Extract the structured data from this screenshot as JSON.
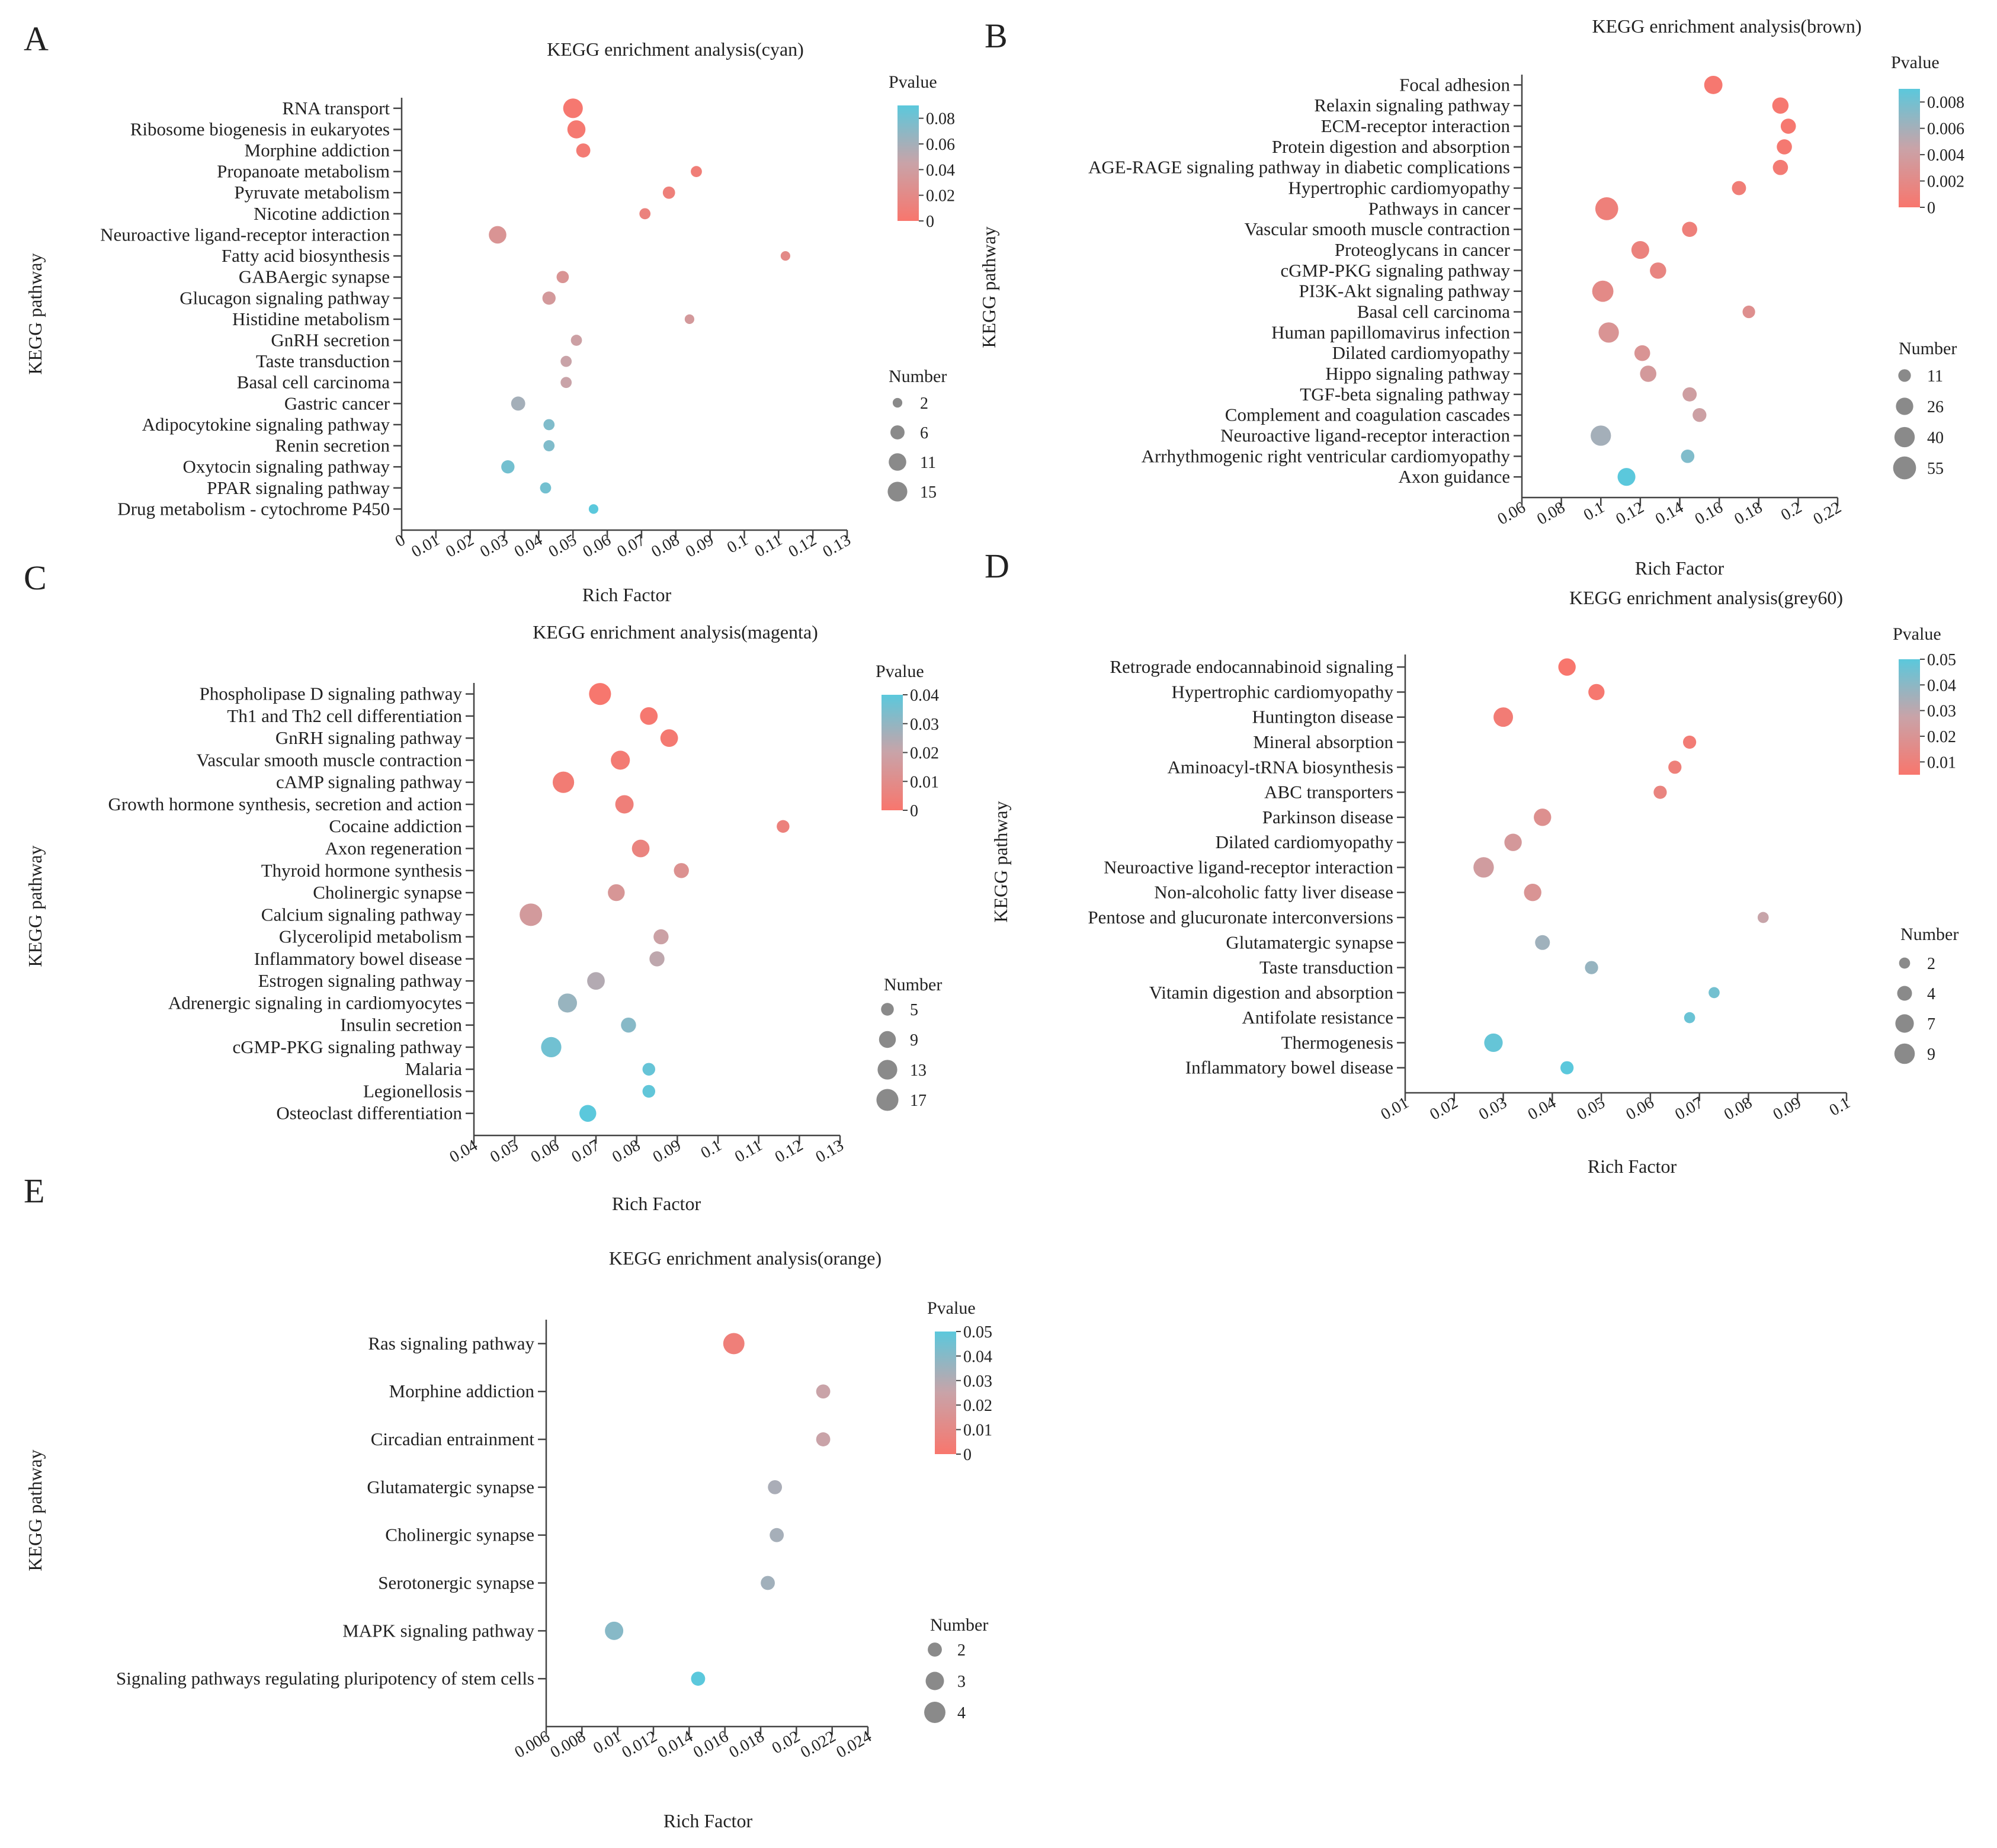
{
  "colors": {
    "low_p": "#F8766D",
    "mid_p": "#C9A3A8",
    "high_p": "#5BC8DC"
  },
  "chart_data": [
    {
      "panel": "A",
      "type": "scatter",
      "title": "KEGG enrichment analysis(cyan)",
      "xlabel": "Rich Factor",
      "ylabel": "KEGG pathway",
      "xlim": [
        0,
        0.13
      ],
      "xticks": [
        0,
        0.01,
        0.02,
        0.03,
        0.04,
        0.05,
        0.06,
        0.07,
        0.08,
        0.09,
        0.1,
        0.11,
        0.12,
        0.13
      ],
      "xtick_labels": [
        "0",
        "0.01",
        "0.02",
        "0.03",
        "0.04",
        "0.05",
        "0.06",
        "0.07",
        "0.08",
        "0.09",
        "0.1",
        "0.11",
        "0.12",
        "0.13"
      ],
      "pvalue_legend": {
        "title": "Pvalue",
        "range": [
          0,
          0.09
        ],
        "ticks": [
          0,
          0.02,
          0.04,
          0.06,
          0.08
        ],
        "tick_labels": [
          "0",
          "0.02",
          "0.04",
          "0.06",
          "0.08"
        ]
      },
      "number_legend": {
        "title": "Number",
        "values": [
          2,
          6,
          11,
          15
        ],
        "labels": [
          "2",
          "6",
          "11",
          "15"
        ],
        "range": [
          1,
          16
        ]
      },
      "points": [
        {
          "pathway": "RNA transport",
          "x": 0.05,
          "number": 15,
          "p": 0.002
        },
        {
          "pathway": "Ribosome biogenesis in eukaryotes",
          "x": 0.051,
          "number": 12,
          "p": 0.003
        },
        {
          "pathway": "Morphine addiction",
          "x": 0.053,
          "number": 6,
          "p": 0.005
        },
        {
          "pathway": "Propanoate metabolism",
          "x": 0.086,
          "number": 3,
          "p": 0.008
        },
        {
          "pathway": "Pyruvate metabolism",
          "x": 0.078,
          "number": 4,
          "p": 0.01
        },
        {
          "pathway": "Nicotine addiction",
          "x": 0.071,
          "number": 3,
          "p": 0.012
        },
        {
          "pathway": "Neuroactive ligand-receptor interaction",
          "x": 0.028,
          "number": 11,
          "p": 0.03
        },
        {
          "pathway": "Fatty acid biosynthesis",
          "x": 0.112,
          "number": 2,
          "p": 0.02
        },
        {
          "pathway": "GABAergic synapse",
          "x": 0.047,
          "number": 4,
          "p": 0.03
        },
        {
          "pathway": "Glucagon signaling pathway",
          "x": 0.043,
          "number": 5,
          "p": 0.035
        },
        {
          "pathway": "Histidine metabolism",
          "x": 0.084,
          "number": 2,
          "p": 0.035
        },
        {
          "pathway": "GnRH secretion",
          "x": 0.051,
          "number": 3,
          "p": 0.042
        },
        {
          "pathway": "Taste transduction",
          "x": 0.048,
          "number": 3,
          "p": 0.045
        },
        {
          "pathway": "Basal cell carcinoma",
          "x": 0.048,
          "number": 3,
          "p": 0.045
        },
        {
          "pathway": "Gastric cancer",
          "x": 0.034,
          "number": 6,
          "p": 0.06
        },
        {
          "pathway": "Adipocytokine signaling pathway",
          "x": 0.043,
          "number": 3,
          "p": 0.075
        },
        {
          "pathway": "Renin secretion",
          "x": 0.043,
          "number": 3,
          "p": 0.075
        },
        {
          "pathway": "Oxytocin signaling pathway",
          "x": 0.031,
          "number": 5,
          "p": 0.08
        },
        {
          "pathway": "PPAR signaling pathway",
          "x": 0.042,
          "number": 3,
          "p": 0.08
        },
        {
          "pathway": "Drug metabolism - cytochrome P450",
          "x": 0.056,
          "number": 2,
          "p": 0.09
        }
      ]
    },
    {
      "panel": "B",
      "type": "scatter",
      "title": "KEGG enrichment analysis(brown)",
      "xlabel": "Rich Factor",
      "ylabel": "KEGG pathway",
      "xlim": [
        0.06,
        0.22
      ],
      "xticks": [
        0.06,
        0.08,
        0.1,
        0.12,
        0.14,
        0.16,
        0.18,
        0.2,
        0.22
      ],
      "xtick_labels": [
        "0.06",
        "0.08",
        "0.1",
        "0.12",
        "0.14",
        "0.16",
        "0.18",
        "0.2",
        "0.22"
      ],
      "pvalue_legend": {
        "title": "Pvalue",
        "range": [
          0,
          0.009
        ],
        "ticks": [
          0,
          0.002,
          0.004,
          0.006,
          0.008
        ],
        "tick_labels": [
          "0",
          "0.002",
          "0.004",
          "0.006",
          "0.008"
        ]
      },
      "number_legend": {
        "title": "Number",
        "values": [
          11,
          26,
          40,
          55
        ],
        "labels": [
          "11",
          "26",
          "40",
          "55"
        ],
        "range": [
          5,
          60
        ]
      },
      "points": [
        {
          "pathway": "Focal adhesion",
          "x": 0.157,
          "number": 30,
          "p": 0.0002
        },
        {
          "pathway": "Relaxin signaling pathway",
          "x": 0.191,
          "number": 22,
          "p": 0.0002
        },
        {
          "pathway": "ECM-receptor interaction",
          "x": 0.195,
          "number": 18,
          "p": 0.0002
        },
        {
          "pathway": "Protein digestion and absorption",
          "x": 0.193,
          "number": 18,
          "p": 0.0003
        },
        {
          "pathway": "AGE-RAGE signaling pathway in diabetic complications",
          "x": 0.191,
          "number": 18,
          "p": 0.0005
        },
        {
          "pathway": "Hypertrophic cardiomyopathy",
          "x": 0.17,
          "number": 15,
          "p": 0.0008
        },
        {
          "pathway": "Pathways in cancer",
          "x": 0.103,
          "number": 55,
          "p": 0.001
        },
        {
          "pathway": "Vascular smooth muscle contraction",
          "x": 0.145,
          "number": 18,
          "p": 0.001
        },
        {
          "pathway": "Proteoglycans in cancer",
          "x": 0.12,
          "number": 28,
          "p": 0.0012
        },
        {
          "pathway": "cGMP-PKG signaling pathway",
          "x": 0.129,
          "number": 22,
          "p": 0.0015
        },
        {
          "pathway": "PI3K-Akt signaling pathway",
          "x": 0.101,
          "number": 45,
          "p": 0.002
        },
        {
          "pathway": "Basal cell carcinoma",
          "x": 0.175,
          "number": 11,
          "p": 0.0025
        },
        {
          "pathway": "Human papillomavirus infection",
          "x": 0.104,
          "number": 40,
          "p": 0.003
        },
        {
          "pathway": "Dilated cardiomyopathy",
          "x": 0.121,
          "number": 20,
          "p": 0.003
        },
        {
          "pathway": "Hippo signaling pathway",
          "x": 0.124,
          "number": 22,
          "p": 0.0035
        },
        {
          "pathway": "TGF-beta signaling pathway",
          "x": 0.145,
          "number": 15,
          "p": 0.004
        },
        {
          "pathway": "Complement and coagulation cascades",
          "x": 0.15,
          "number": 14,
          "p": 0.0042
        },
        {
          "pathway": "Neuroactive ligand-receptor interaction",
          "x": 0.1,
          "number": 40,
          "p": 0.006
        },
        {
          "pathway": "Arrhythmogenic right ventricular cardiomyopathy",
          "x": 0.144,
          "number": 13,
          "p": 0.0075
        },
        {
          "pathway": "Axon guidance",
          "x": 0.113,
          "number": 28,
          "p": 0.009
        }
      ]
    },
    {
      "panel": "C",
      "type": "scatter",
      "title": "KEGG enrichment analysis(magenta)",
      "xlabel": "Rich Factor",
      "ylabel": "KEGG pathway",
      "xlim": [
        0.04,
        0.13
      ],
      "xticks": [
        0.04,
        0.05,
        0.06,
        0.07,
        0.08,
        0.09,
        0.1,
        0.11,
        0.12,
        0.13
      ],
      "xtick_labels": [
        "0.04",
        "0.05",
        "0.06",
        "0.07",
        "0.08",
        "0.09",
        "0.1",
        "0.11",
        "0.12",
        "0.13"
      ],
      "pvalue_legend": {
        "title": "Pvalue",
        "range": [
          0,
          0.04
        ],
        "ticks": [
          0,
          0.01,
          0.02,
          0.03,
          0.04
        ],
        "tick_labels": [
          "0",
          "0.01",
          "0.02",
          "0.03",
          "0.04"
        ]
      },
      "number_legend": {
        "title": "Number",
        "values": [
          5,
          9,
          13,
          17
        ],
        "labels": [
          "5",
          "9",
          "13",
          "17"
        ],
        "range": [
          3,
          18
        ]
      },
      "points": [
        {
          "pathway": "Phospholipase D signaling pathway",
          "x": 0.071,
          "number": 17,
          "p": 0.0005
        },
        {
          "pathway": "Th1 and Th2 cell differentiation",
          "x": 0.083,
          "number": 10,
          "p": 0.001
        },
        {
          "pathway": "GnRH signaling pathway",
          "x": 0.088,
          "number": 10,
          "p": 0.0015
        },
        {
          "pathway": "Vascular smooth muscle contraction",
          "x": 0.076,
          "number": 12,
          "p": 0.002
        },
        {
          "pathway": "cAMP signaling pathway",
          "x": 0.062,
          "number": 16,
          "p": 0.0025
        },
        {
          "pathway": "Growth hormone synthesis, secretion and action",
          "x": 0.077,
          "number": 11,
          "p": 0.004
        },
        {
          "pathway": "Cocaine addiction",
          "x": 0.116,
          "number": 5,
          "p": 0.005
        },
        {
          "pathway": "Axon regeneration",
          "x": 0.081,
          "number": 10,
          "p": 0.006
        },
        {
          "pathway": "Thyroid hormone synthesis",
          "x": 0.091,
          "number": 7,
          "p": 0.012
        },
        {
          "pathway": "Cholinergic synapse",
          "x": 0.075,
          "number": 9,
          "p": 0.014
        },
        {
          "pathway": "Calcium signaling pathway",
          "x": 0.054,
          "number": 18,
          "p": 0.016
        },
        {
          "pathway": "Glycerolipid metabolism",
          "x": 0.086,
          "number": 7,
          "p": 0.019
        },
        {
          "pathway": "Inflammatory bowel disease",
          "x": 0.085,
          "number": 7,
          "p": 0.022
        },
        {
          "pathway": "Estrogen signaling pathway",
          "x": 0.07,
          "number": 10,
          "p": 0.024
        },
        {
          "pathway": "Adrenergic signaling in cardiomyocytes",
          "x": 0.063,
          "number": 12,
          "p": 0.029
        },
        {
          "pathway": "Insulin secretion",
          "x": 0.078,
          "number": 7,
          "p": 0.032
        },
        {
          "pathway": "cGMP-PKG signaling pathway",
          "x": 0.059,
          "number": 14,
          "p": 0.036
        },
        {
          "pathway": "Malaria",
          "x": 0.083,
          "number": 5,
          "p": 0.038
        },
        {
          "pathway": "Legionellosis",
          "x": 0.083,
          "number": 5,
          "p": 0.039
        },
        {
          "pathway": "Osteoclast differentiation",
          "x": 0.068,
          "number": 9,
          "p": 0.04
        }
      ]
    },
    {
      "panel": "D",
      "type": "scatter",
      "title": "KEGG enrichment analysis(grey60)",
      "xlabel": "Rich Factor",
      "ylabel": "KEGG pathway",
      "xlim": [
        0.01,
        0.1
      ],
      "xticks": [
        0.01,
        0.02,
        0.03,
        0.04,
        0.05,
        0.06,
        0.07,
        0.08,
        0.09,
        0.1
      ],
      "xtick_labels": [
        "0.01",
        "0.02",
        "0.03",
        "0.04",
        "0.05",
        "0.06",
        "0.07",
        "0.08",
        "0.09",
        "0.1"
      ],
      "pvalue_legend": {
        "title": "Pvalue",
        "range": [
          0.005,
          0.05
        ],
        "ticks": [
          0.01,
          0.02,
          0.03,
          0.04,
          0.05
        ],
        "tick_labels": [
          "0.01",
          "0.02",
          "0.03",
          "0.04",
          "0.05"
        ]
      },
      "number_legend": {
        "title": "Number",
        "values": [
          2,
          4,
          7,
          9
        ],
        "labels": [
          "2",
          "4",
          "7",
          "9"
        ],
        "range": [
          1,
          10
        ]
      },
      "points": [
        {
          "pathway": "Retrograde endocannabinoid signaling",
          "x": 0.043,
          "number": 6,
          "p": 0.005
        },
        {
          "pathway": "Hypertrophic cardiomyopathy",
          "x": 0.049,
          "number": 5,
          "p": 0.006
        },
        {
          "pathway": "Huntington disease",
          "x": 0.03,
          "number": 8,
          "p": 0.008
        },
        {
          "pathway": "Mineral absorption",
          "x": 0.068,
          "number": 3,
          "p": 0.008
        },
        {
          "pathway": "Aminoacyl-tRNA biosynthesis",
          "x": 0.065,
          "number": 3,
          "p": 0.01
        },
        {
          "pathway": "ABC transporters",
          "x": 0.062,
          "number": 3,
          "p": 0.012
        },
        {
          "pathway": "Parkinson disease",
          "x": 0.038,
          "number": 6,
          "p": 0.018
        },
        {
          "pathway": "Dilated cardiomyopathy",
          "x": 0.032,
          "number": 6,
          "p": 0.022
        },
        {
          "pathway": "Neuroactive ligand-receptor interaction",
          "x": 0.026,
          "number": 9,
          "p": 0.024
        },
        {
          "pathway": "Non-alcoholic fatty liver disease",
          "x": 0.036,
          "number": 6,
          "p": 0.02
        },
        {
          "pathway": "Pentose and glucuronate interconversions",
          "x": 0.083,
          "number": 2,
          "p": 0.028
        },
        {
          "pathway": "Glutamatergic synapse",
          "x": 0.038,
          "number": 4,
          "p": 0.036
        },
        {
          "pathway": "Taste transduction",
          "x": 0.048,
          "number": 3,
          "p": 0.038
        },
        {
          "pathway": "Vitamin digestion and absorption",
          "x": 0.073,
          "number": 2,
          "p": 0.045
        },
        {
          "pathway": "Antifolate resistance",
          "x": 0.068,
          "number": 2,
          "p": 0.047
        },
        {
          "pathway": "Thermogenesis",
          "x": 0.028,
          "number": 7,
          "p": 0.048
        },
        {
          "pathway": "Inflammatory bowel disease",
          "x": 0.043,
          "number": 3,
          "p": 0.05
        }
      ]
    },
    {
      "panel": "E",
      "type": "scatter",
      "title": "KEGG enrichment analysis(orange)",
      "xlabel": "Rich Factor",
      "ylabel": "KEGG pathway",
      "xlim": [
        0.006,
        0.024
      ],
      "xticks": [
        0.006,
        0.008,
        0.01,
        0.012,
        0.014,
        0.016,
        0.018,
        0.02,
        0.022,
        0.024
      ],
      "xtick_labels": [
        "0.006",
        "0.008",
        "0.01",
        "0.012",
        "0.014",
        "0.016",
        "0.018",
        "0.02",
        "0.022",
        "0.024"
      ],
      "pvalue_legend": {
        "title": "Pvalue",
        "range": [
          0,
          0.05
        ],
        "ticks": [
          0,
          0.01,
          0.02,
          0.03,
          0.04,
          0.05
        ],
        "tick_labels": [
          "0",
          "0.01",
          "0.02",
          "0.03",
          "0.04",
          "0.05"
        ]
      },
      "number_legend": {
        "title": "Number",
        "values": [
          2,
          3,
          4
        ],
        "labels": [
          "2",
          "3",
          "4"
        ],
        "range": [
          1.5,
          4.5
        ]
      },
      "points": [
        {
          "pathway": "Ras signaling pathway",
          "x": 0.0165,
          "number": 4,
          "p": 0.005
        },
        {
          "pathway": "Morphine addiction",
          "x": 0.0215,
          "number": 2,
          "p": 0.025
        },
        {
          "pathway": "Circadian entrainment",
          "x": 0.0215,
          "number": 2,
          "p": 0.025
        },
        {
          "pathway": "Glutamatergic synapse",
          "x": 0.0188,
          "number": 2,
          "p": 0.032
        },
        {
          "pathway": "Cholinergic synapse",
          "x": 0.0189,
          "number": 2,
          "p": 0.033
        },
        {
          "pathway": "Serotonergic synapse",
          "x": 0.0184,
          "number": 2,
          "p": 0.034
        },
        {
          "pathway": "MAPK signaling pathway",
          "x": 0.0098,
          "number": 3,
          "p": 0.04
        },
        {
          "pathway": "Signaling pathways regulating pluripotency of stem cells",
          "x": 0.0145,
          "number": 2,
          "p": 0.05
        }
      ]
    }
  ]
}
